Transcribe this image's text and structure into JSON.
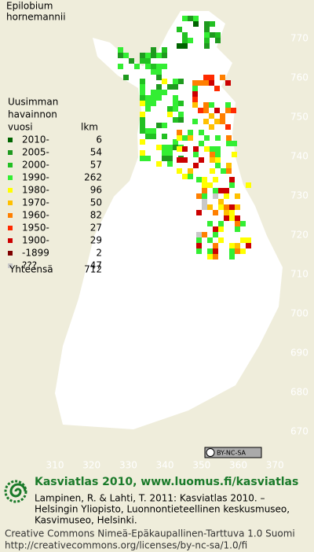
{
  "header": {
    "title_lines": [
      "Epilobium",
      "hornemannii"
    ]
  },
  "legend": {
    "heading_lines": [
      "Uusimman",
      "havainnon"
    ],
    "year_column": "vuosi",
    "count_column": "lkm",
    "rows": [
      {
        "label": "2010-",
        "count": 6,
        "color": "#006400"
      },
      {
        "label": "2005-",
        "count": 54,
        "color": "#1f9a1f"
      },
      {
        "label": "2000-",
        "count": 57,
        "color": "#22c022"
      },
      {
        "label": "1990-",
        "count": 262,
        "color": "#33ee33"
      },
      {
        "label": "1980-",
        "count": 96,
        "color": "#ffff00"
      },
      {
        "label": "1970-",
        "count": 50,
        "color": "#ffc000"
      },
      {
        "label": "1960-",
        "count": 82,
        "color": "#ff7f00"
      },
      {
        "label": "1950-",
        "count": 27,
        "color": "#ff2a00"
      },
      {
        "label": "1900-",
        "count": 29,
        "color": "#cc0000"
      },
      {
        "label": "-1899",
        "count": 2,
        "color": "#7f0000"
      },
      {
        "label": "???",
        "count": 47,
        "color": "#c8c8c8"
      }
    ],
    "total": {
      "label": "Yhteensä",
      "count": 712
    }
  },
  "axes": {
    "northing": [
      770,
      760,
      750,
      740,
      730,
      720,
      710,
      700,
      690,
      680,
      670
    ],
    "easting": [
      310,
      320,
      330,
      340,
      350,
      360,
      370
    ]
  },
  "license_badge": "BY-NC-SA",
  "footer": {
    "headline": "Kasviatlas 2010, www.luomus.fi/kasviatlas",
    "citation_lines": [
      "Lampinen, R. & Lahti, T. 2011: Kasviatlas 2010. –",
      "Helsingin Yliopisto, Luonnontieteellinen keskusmuseo,",
      "Kasvimuseo, Helsinki."
    ],
    "license_lines": [
      "Creative Commons Nimeä-Epäkaupallinen-Tarttuva 1.0 Suomi",
      "http://creativecommons.org/licenses/by-nc-sa/1.0/fi"
    ]
  }
}
